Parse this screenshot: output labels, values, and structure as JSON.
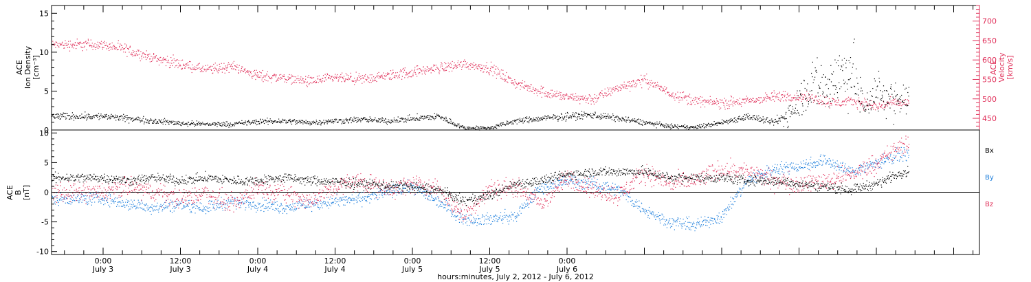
{
  "chart_data": [
    {
      "type": "scatter",
      "panel": "top",
      "left_axis": {
        "lines": [
          "ACE",
          "Ion Density",
          "[cm⁻³]"
        ],
        "ylim": [
          0,
          16
        ],
        "ticks": [
          0,
          5,
          10,
          15
        ]
      },
      "right_axis": {
        "lines": [
          "ACE",
          "Velocity",
          "[km/s]"
        ],
        "ylim": [
          420,
          740
        ],
        "ticks": [
          450,
          500,
          550,
          600,
          650,
          700
        ]
      },
      "series": [
        {
          "name": "ACE Ion Density",
          "color": "#000000",
          "axis": "left",
          "x": [
            0,
            4,
            8,
            12,
            16,
            20,
            24,
            28,
            32,
            36,
            40,
            44,
            48,
            52,
            56,
            60,
            64,
            68,
            72,
            76,
            80,
            84,
            88,
            92,
            96,
            100,
            104,
            106,
            108,
            110,
            112,
            114,
            116,
            118,
            120,
            122,
            124
          ],
          "y": [
            1.8,
            1.5,
            1.2,
            0.9,
            0.8,
            0.8,
            1.1,
            1.2,
            1.0,
            1.2,
            1.4,
            1.2,
            1.5,
            1.8,
            0.3,
            0.3,
            1.2,
            1.5,
            1.8,
            2.0,
            1.5,
            1.0,
            0.5,
            0.4,
            1.0,
            1.8,
            1.0,
            1.8,
            4.0,
            6.0,
            5.5,
            7.0,
            8.0,
            3.0,
            5.0,
            4.0,
            4.0
          ]
        },
        {
          "name": "ACE Velocity",
          "color": "#e0305a",
          "axis": "right",
          "x": [
            0,
            4,
            8,
            12,
            16,
            20,
            24,
            28,
            32,
            36,
            40,
            44,
            48,
            52,
            56,
            60,
            64,
            68,
            72,
            76,
            80,
            84,
            88,
            92,
            96,
            100,
            104,
            106,
            108,
            110,
            112,
            114,
            116,
            118,
            120,
            122,
            124
          ],
          "y": [
            640,
            625,
            605,
            590,
            575,
            585,
            560,
            555,
            545,
            555,
            550,
            560,
            570,
            580,
            590,
            580,
            540,
            520,
            505,
            500,
            530,
            550,
            515,
            495,
            490,
            495,
            505,
            510,
            505,
            505,
            495,
            490,
            495,
            490,
            480,
            490,
            490
          ]
        }
      ]
    },
    {
      "type": "scatter",
      "panel": "bottom",
      "left_axis": {
        "lines": [
          "ACE",
          "B",
          "[nT]"
        ],
        "ylim": [
          -10.5,
          10.5
        ],
        "ticks": [
          -10,
          -5,
          0,
          5,
          10
        ]
      },
      "legend": {
        "position": "right",
        "entries": [
          "Bx",
          "By",
          "Bz"
        ]
      },
      "series": [
        {
          "name": "Bx",
          "color": "#000000",
          "x": [
            0,
            4,
            8,
            12,
            16,
            20,
            24,
            28,
            32,
            36,
            40,
            44,
            48,
            52,
            56,
            60,
            64,
            68,
            72,
            76,
            80,
            84,
            88,
            92,
            96,
            100,
            104,
            108,
            112,
            116,
            120,
            124
          ],
          "y": [
            2.5,
            2.0,
            2.5,
            2.0,
            2.5,
            2.0,
            2.0,
            2.5,
            2.0,
            1.8,
            1.5,
            1.2,
            1.0,
            0.5,
            -1.5,
            -0.5,
            1.5,
            2.0,
            3.0,
            3.5,
            3.5,
            3.5,
            2.5,
            2.5,
            2.5,
            2.0,
            2.0,
            1.5,
            1.0,
            0.5,
            1.5,
            3.5
          ]
        },
        {
          "name": "By",
          "color": "#1e7fdc",
          "x": [
            0,
            4,
            8,
            12,
            16,
            20,
            24,
            28,
            32,
            36,
            40,
            44,
            48,
            52,
            56,
            60,
            64,
            68,
            72,
            76,
            80,
            84,
            88,
            92,
            96,
            100,
            104,
            108,
            112,
            116,
            120,
            124
          ],
          "y": [
            -1.0,
            -2.0,
            -2.5,
            -2.0,
            -2.5,
            -1.5,
            -2.0,
            -2.5,
            -2.0,
            -1.5,
            -1.0,
            0.0,
            1.0,
            -1.5,
            -4.5,
            -4.5,
            -4.0,
            1.0,
            2.0,
            1.5,
            0.5,
            -3.0,
            -5.0,
            -5.5,
            -4.0,
            2.0,
            4.0,
            4.5,
            5.5,
            3.5,
            5.0,
            6.5
          ]
        },
        {
          "name": "Bz",
          "color": "#e0305a",
          "x": [
            0,
            4,
            8,
            12,
            16,
            20,
            24,
            28,
            32,
            36,
            40,
            44,
            48,
            52,
            56,
            60,
            64,
            68,
            72,
            76,
            80,
            84,
            88,
            92,
            96,
            100,
            104,
            108,
            112,
            116,
            120,
            124
          ],
          "y": [
            0.0,
            1.0,
            0.0,
            -1.0,
            0.0,
            -2.0,
            1.0,
            0.0,
            -1.5,
            1.0,
            2.0,
            0.5,
            1.5,
            0.5,
            -4.0,
            0.5,
            1.0,
            -2.0,
            2.5,
            0.5,
            -0.5,
            3.5,
            1.5,
            2.0,
            4.0,
            3.5,
            2.0,
            1.5,
            2.0,
            3.0,
            5.0,
            8.0
          ]
        }
      ]
    }
  ],
  "x_axis": {
    "range_hours": [
      -8,
      136
    ],
    "data_end_hours": 125,
    "tick_labels": [
      {
        "time": "0:00",
        "date": "July 3"
      },
      {
        "time": "12:00",
        "date": "July 3"
      },
      {
        "time": "0:00",
        "date": "July 4"
      },
      {
        "time": "12:00",
        "date": "July 4"
      },
      {
        "time": "0:00",
        "date": "July 5"
      },
      {
        "time": "12:00",
        "date": "July 5"
      },
      {
        "time": "0:00",
        "date": "July 6"
      }
    ],
    "title": "hours:minutes, July  2, 2012 - July  6, 2012"
  },
  "colors": {
    "density": "#000000",
    "velocity": "#e0305a",
    "bx": "#000000",
    "by": "#1e7fdc",
    "bz": "#e0305a",
    "axis": "#000000",
    "right_axis": "#e0305a"
  }
}
